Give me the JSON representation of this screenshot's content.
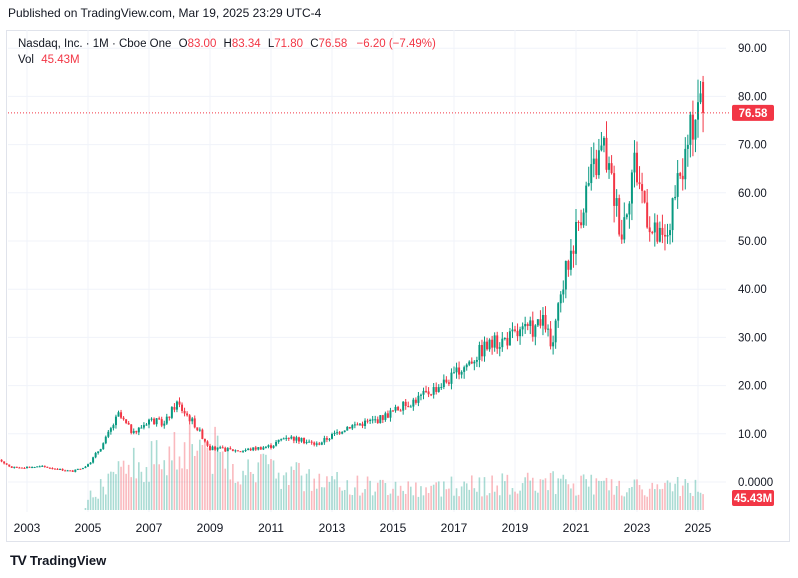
{
  "header": {
    "published": "Published on TradingView.com, Mar 19, 2025 23:29 UTC-4"
  },
  "legend": {
    "symbol": "Nasdaq, Inc. · 1M · Cboe One",
    "o_label": "O",
    "o_value": "83.00",
    "h_label": "H",
    "h_value": "83.34",
    "l_label": "L",
    "l_value": "71.80",
    "c_label": "C",
    "c_value": "76.58",
    "change": "−6.20 (−7.49%)",
    "vol_label": "Vol",
    "vol_value": "45.43M"
  },
  "brand": {
    "name": "TradingView",
    "logo_text": "TV"
  },
  "colors": {
    "up": "#089981",
    "down": "#f23645",
    "grid": "#f0f3fa",
    "axis_text": "#131722"
  },
  "chart_data": {
    "type": "candlestick",
    "title": "Nasdaq, Inc. · 1M · Cboe One",
    "x_ticks": [
      "2003",
      "2005",
      "2007",
      "2009",
      "2011",
      "2013",
      "2015",
      "2017",
      "2019",
      "2021",
      "2023",
      "2025"
    ],
    "y_ticks": [
      "90.00",
      "80.00",
      "70.00",
      "60.00",
      "50.00",
      "40.00",
      "30.00",
      "20.00",
      "10.00",
      "0.0000"
    ],
    "ylim": [
      0,
      90
    ],
    "last_price_label": "76.58",
    "last_price": 76.58,
    "volume_label": "45.43M",
    "keypoints": [
      {
        "year": 2002.0,
        "price": 5.0
      },
      {
        "year": 2002.5,
        "price": 3.0
      },
      {
        "year": 2003.5,
        "price": 3.2
      },
      {
        "year": 2004.5,
        "price": 2.2
      },
      {
        "year": 2005.0,
        "price": 3.5
      },
      {
        "year": 2005.5,
        "price": 8.0
      },
      {
        "year": 2006.0,
        "price": 14.0
      },
      {
        "year": 2006.5,
        "price": 10.0
      },
      {
        "year": 2007.0,
        "price": 13.0
      },
      {
        "year": 2007.5,
        "price": 12.0
      },
      {
        "year": 2007.9,
        "price": 16.5
      },
      {
        "year": 2008.5,
        "price": 12.0
      },
      {
        "year": 2009.0,
        "price": 7.0
      },
      {
        "year": 2010.0,
        "price": 6.5
      },
      {
        "year": 2011.0,
        "price": 7.5
      },
      {
        "year": 2011.5,
        "price": 9.5
      },
      {
        "year": 2012.5,
        "price": 7.8
      },
      {
        "year": 2013.5,
        "price": 11.5
      },
      {
        "year": 2014.5,
        "price": 13.0
      },
      {
        "year": 2016.0,
        "price": 18.0
      },
      {
        "year": 2017.0,
        "price": 22.0
      },
      {
        "year": 2018.0,
        "price": 28.0
      },
      {
        "year": 2019.0,
        "price": 30.5
      },
      {
        "year": 2020.0,
        "price": 33.0
      },
      {
        "year": 2020.2,
        "price": 27.0
      },
      {
        "year": 2020.6,
        "price": 42.0
      },
      {
        "year": 2021.3,
        "price": 60.0
      },
      {
        "year": 2021.9,
        "price": 70.0
      },
      {
        "year": 2022.5,
        "price": 52.0
      },
      {
        "year": 2022.9,
        "price": 67.0
      },
      {
        "year": 2023.5,
        "price": 52.0
      },
      {
        "year": 2023.9,
        "price": 49.5
      },
      {
        "year": 2024.5,
        "price": 65.0
      },
      {
        "year": 2025.0,
        "price": 80.0
      },
      {
        "year": 2025.2,
        "price": 76.58
      }
    ],
    "volume_keypoints": [
      {
        "year": 2002.0,
        "v": 0
      },
      {
        "year": 2004.9,
        "v": 0
      },
      {
        "year": 2005.0,
        "v": 0.15
      },
      {
        "year": 2006.0,
        "v": 0.45
      },
      {
        "year": 2008.5,
        "v": 0.95
      },
      {
        "year": 2010.0,
        "v": 0.55
      },
      {
        "year": 2013.0,
        "v": 0.35
      },
      {
        "year": 2016.0,
        "v": 0.28
      },
      {
        "year": 2020.0,
        "v": 0.35
      },
      {
        "year": 2023.0,
        "v": 0.28
      },
      {
        "year": 2025.2,
        "v": 0.3
      }
    ]
  }
}
